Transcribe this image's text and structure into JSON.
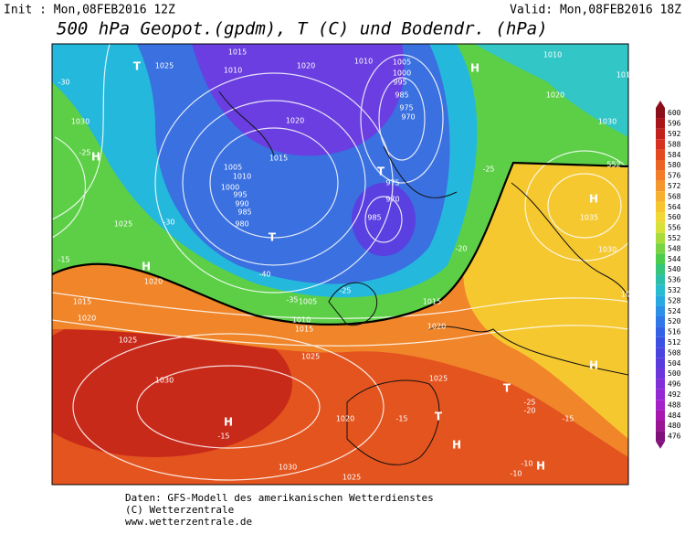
{
  "header": {
    "init": "Init : Mon,08FEB2016 12Z",
    "valid": "Valid: Mon,08FEB2016 18Z",
    "title": "500 hPa Geopot.(gpdm), T (C) und Bodendr. (hPa)"
  },
  "colorbar": {
    "labels": [
      "600",
      "596",
      "592",
      "588",
      "584",
      "580",
      "576",
      "572",
      "568",
      "564",
      "560",
      "556",
      "552",
      "548",
      "544",
      "540",
      "536",
      "532",
      "528",
      "524",
      "520",
      "516",
      "512",
      "508",
      "504",
      "500",
      "496",
      "492",
      "488",
      "484",
      "480",
      "476"
    ]
  },
  "map": {
    "labels": [
      "T",
      "1025",
      "1015",
      "1010",
      "1020",
      "1010",
      "1005",
      "1000",
      "995",
      "985",
      "975",
      "970",
      "H",
      "1010",
      "1015",
      "1020",
      "1030",
      "-30",
      "1030",
      "H",
      "-25",
      "1005",
      "1010",
      "1015",
      "1020",
      "T",
      "975",
      "970",
      "985",
      "H",
      "1035",
      "552",
      "-25",
      "1000",
      "995",
      "990",
      "985",
      "980",
      "T",
      "1025",
      "-30",
      "H",
      "1020",
      "-15",
      "-40",
      "1030",
      "-20",
      "1015",
      "1020",
      "1025",
      "1005",
      "1010",
      "1015",
      "1015",
      "1020",
      "-25",
      "-35",
      "1025",
      "1030",
      "1025",
      "1025",
      "H",
      "-15",
      "1020",
      "-15",
      "T",
      "T",
      "H",
      "H",
      "-25",
      "-20",
      "-15",
      "1030",
      "1025",
      "-10",
      "-10",
      "H"
    ]
  },
  "footer": {
    "lines": [
      "Daten: GFS-Modell des amerikanischen Wetterdienstes",
      "(C) Wetterzentrale",
      "www.wetterzentrale.de"
    ]
  }
}
